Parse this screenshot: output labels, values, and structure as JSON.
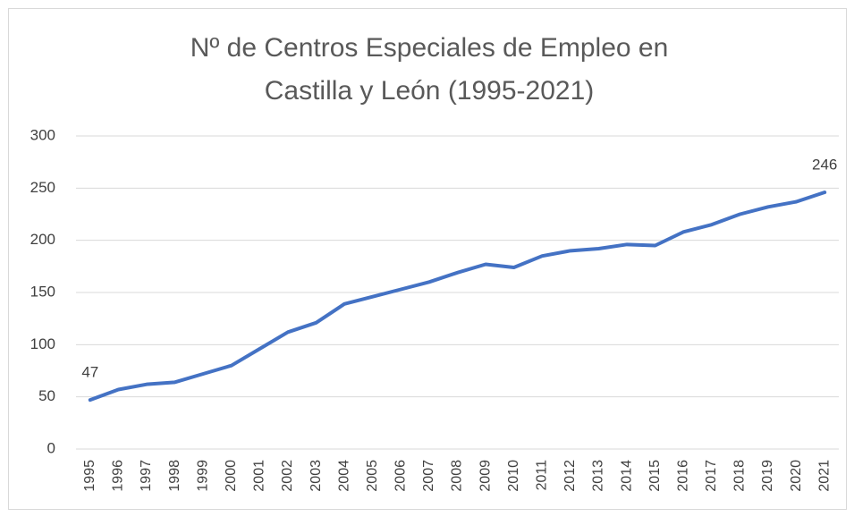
{
  "chart_data": {
    "type": "line",
    "title": "Nº de Centros Especiales de Empleo en Castilla y León (1995-2021)",
    "categories": [
      "1995",
      "1996",
      "1997",
      "1998",
      "1999",
      "2000",
      "2001",
      "2002",
      "2003",
      "2004",
      "2005",
      "2006",
      "2007",
      "2008",
      "2009",
      "2010",
      "2011",
      "2012",
      "2013",
      "2014",
      "2015",
      "2016",
      "2017",
      "2018",
      "2019",
      "2020",
      "2021"
    ],
    "values": [
      47,
      57,
      62,
      64,
      72,
      80,
      96,
      112,
      121,
      139,
      146,
      153,
      160,
      169,
      177,
      174,
      185,
      190,
      192,
      196,
      195,
      208,
      215,
      225,
      232,
      237,
      246
    ],
    "value_labels": [
      "47",
      null,
      null,
      null,
      null,
      null,
      null,
      null,
      null,
      null,
      null,
      null,
      null,
      null,
      null,
      null,
      null,
      null,
      null,
      null,
      null,
      null,
      null,
      null,
      null,
      null,
      "246"
    ],
    "color": "#4472c4",
    "ylim": [
      0,
      300
    ],
    "yticks": [
      0,
      50,
      100,
      150,
      200,
      250,
      300
    ],
    "grid": true
  }
}
